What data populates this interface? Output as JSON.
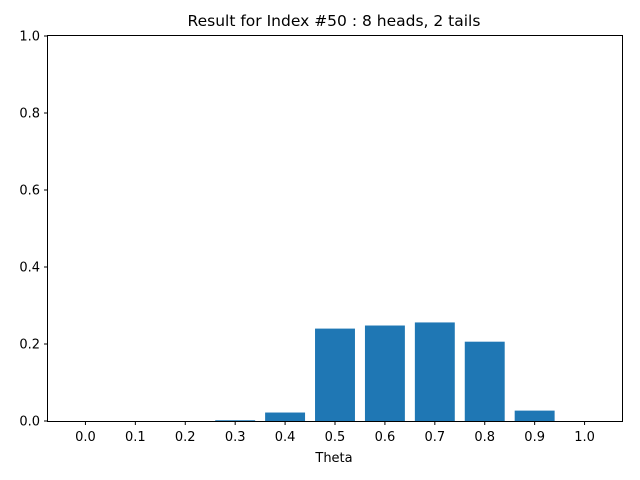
{
  "chart_data": {
    "type": "bar",
    "title": "Result for Index #50 : 8 heads, 2 tails",
    "xlabel": "Theta",
    "ylabel": "",
    "categories": [
      "0.0",
      "0.1",
      "0.2",
      "0.3",
      "0.4",
      "0.5",
      "0.6",
      "0.7",
      "0.8",
      "0.9",
      "1.0"
    ],
    "values": [
      0.0,
      0.0,
      0.0,
      0.002,
      0.022,
      0.24,
      0.248,
      0.256,
      0.206,
      0.027,
      0.0
    ],
    "ylim": [
      0,
      1
    ],
    "yticks": [
      "0.0",
      "0.2",
      "0.4",
      "0.6",
      "0.8",
      "1.0"
    ],
    "bar_color": "#1f77b4",
    "grid": false,
    "legend": "none"
  }
}
